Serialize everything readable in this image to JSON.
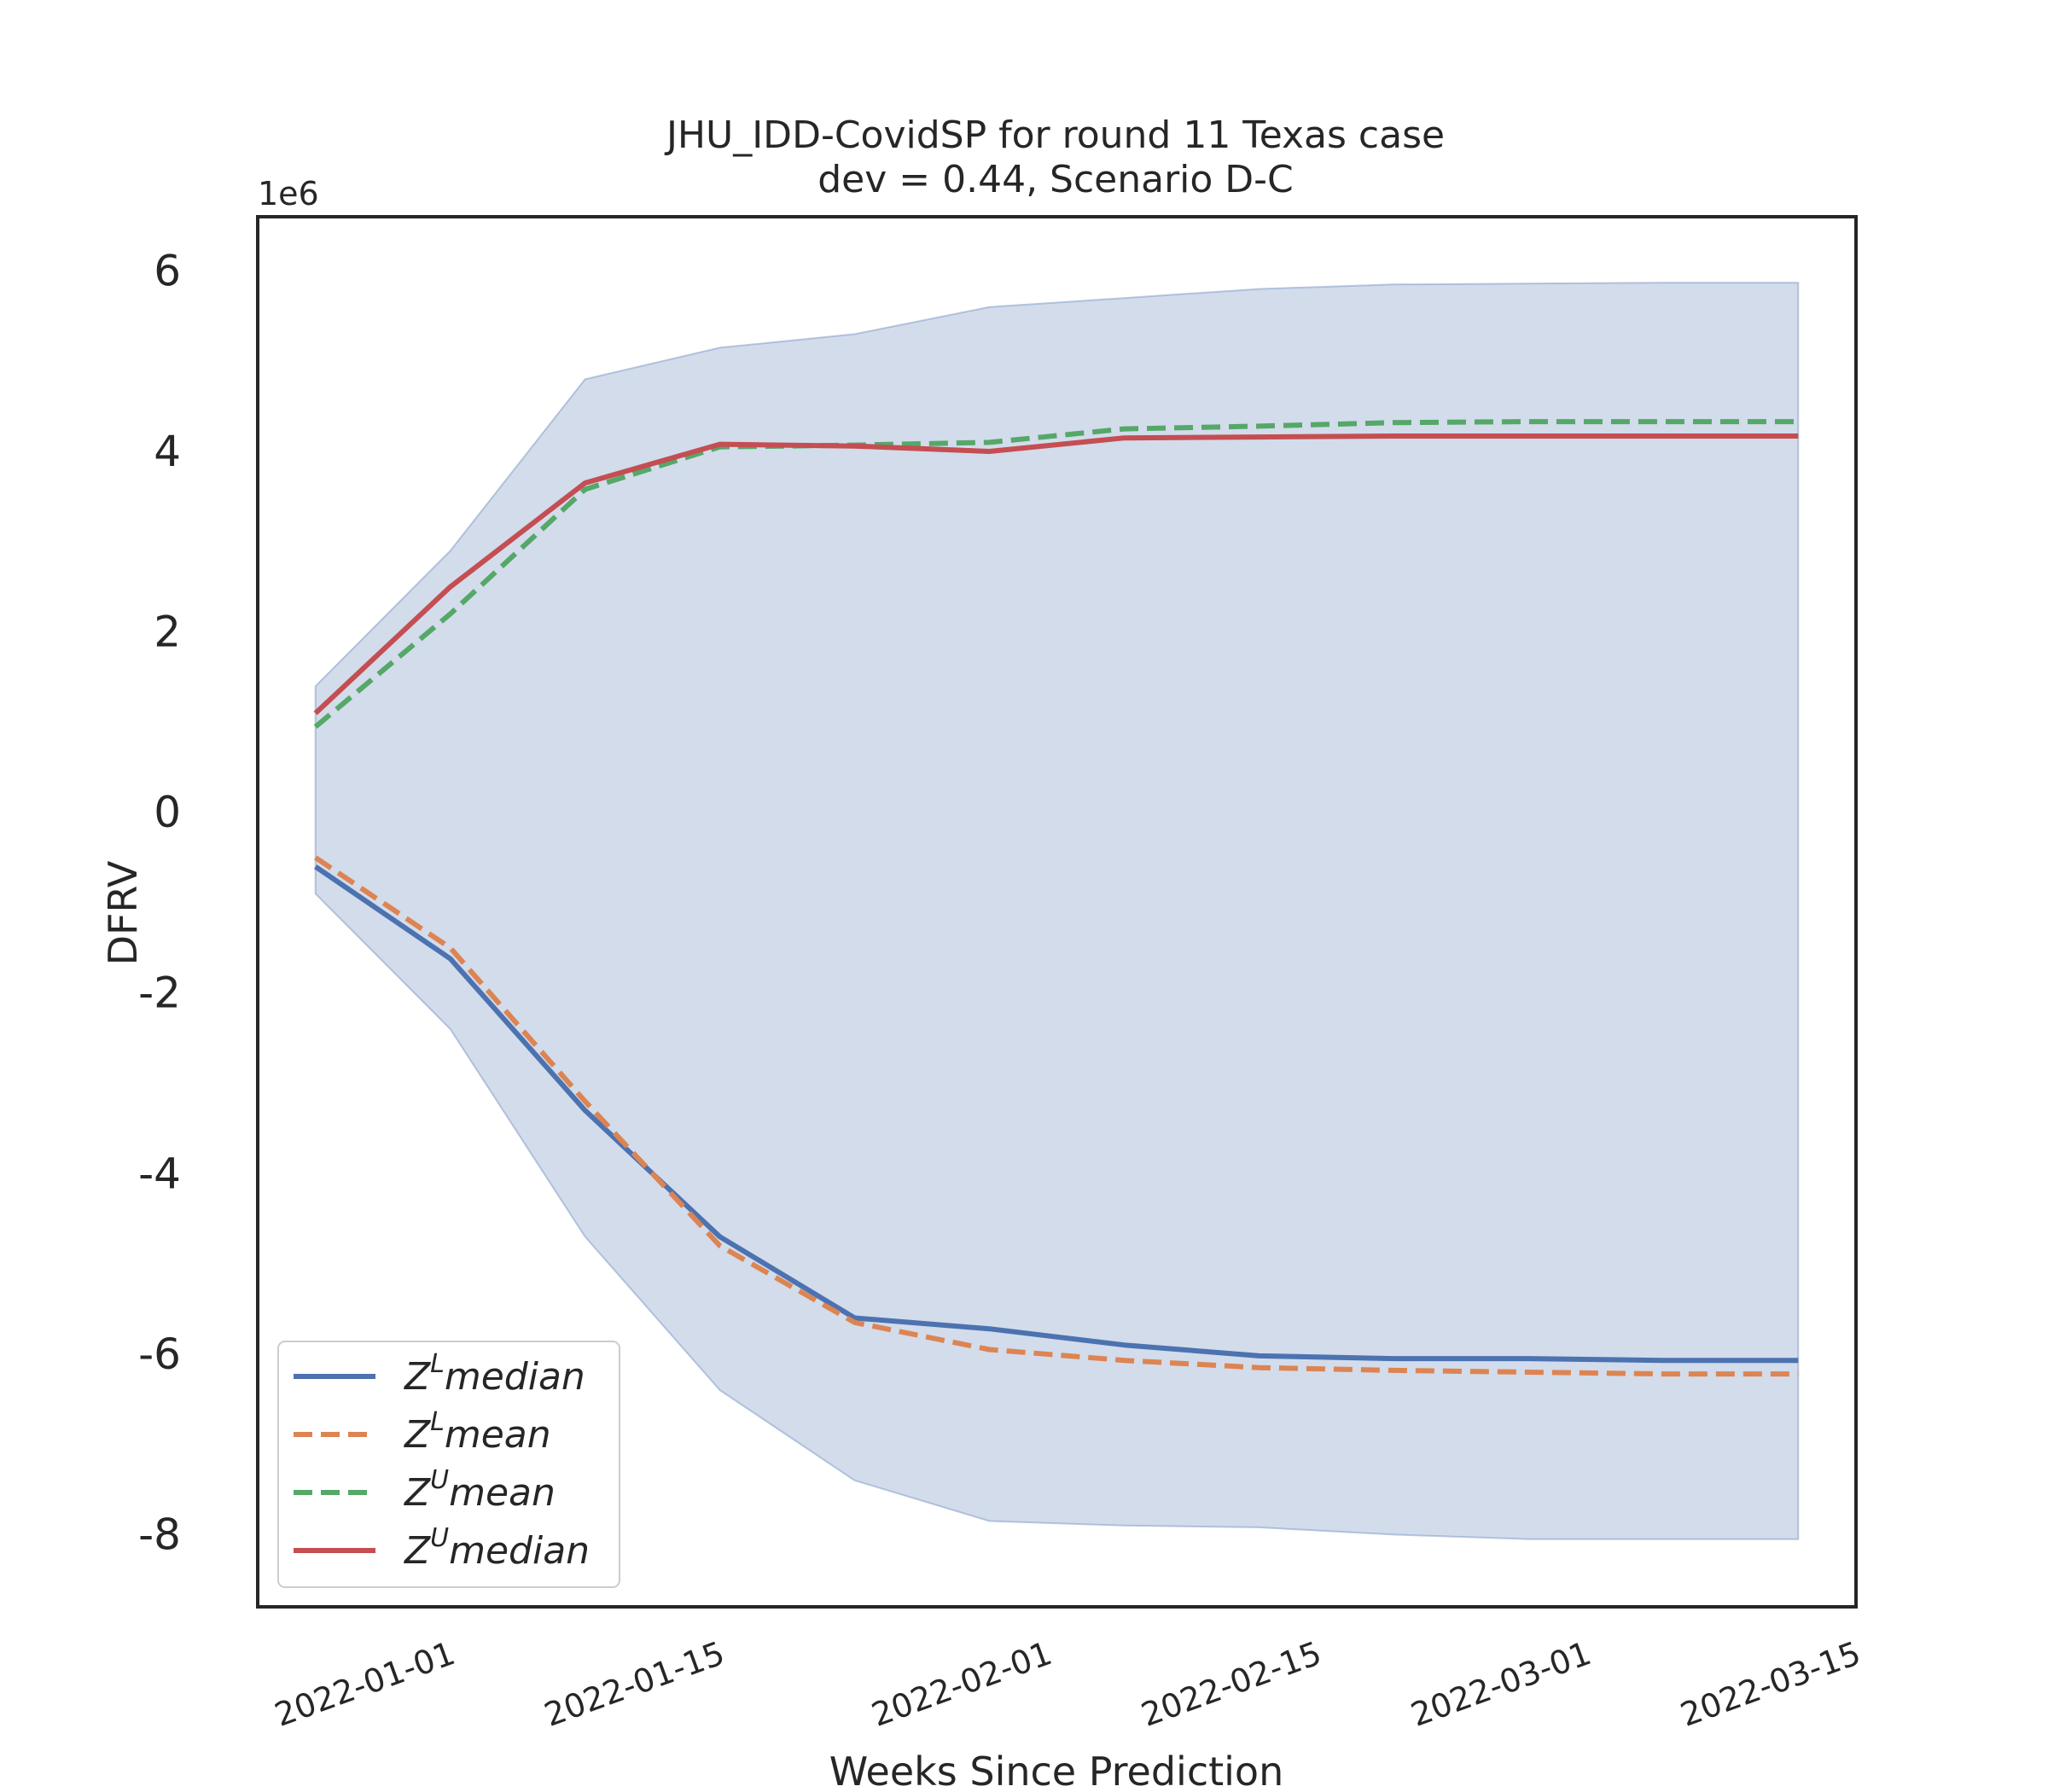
{
  "chart_data": {
    "type": "line",
    "title": [
      "JHU_IDD-CovidSP for round 11 Texas case",
      "dev = 0.44, Scenario D-C"
    ],
    "xlabel": "Weeks Since Prediction",
    "ylabel": "DFRV",
    "y_offset_label": "1e6",
    "x_tick_labels": [
      "2022-01-01",
      "2022-01-15",
      "2022-02-01",
      "2022-02-15",
      "2022-03-01",
      "2022-03-15"
    ],
    "y_tick_labels": [
      "6",
      "4",
      "2",
      "0",
      "-2",
      "-4",
      "-6",
      "-8"
    ],
    "y_tick_values": [
      6,
      4,
      2,
      0,
      -2,
      -4,
      -6,
      -8
    ],
    "xlim": [
      "2021-12-22",
      "2022-03-15"
    ],
    "ylim": [
      -8.8,
      6.6
    ],
    "grid": false,
    "legend_position": "lower-left",
    "x": [
      "2021-12-25",
      "2022-01-01",
      "2022-01-08",
      "2022-01-15",
      "2022-01-22",
      "2022-01-29",
      "2022-02-05",
      "2022-02-12",
      "2022-02-19",
      "2022-02-26",
      "2022-03-05",
      "2022-03-12"
    ],
    "band": {
      "upper": [
        1.4,
        2.9,
        4.8,
        5.15,
        5.3,
        5.6,
        5.7,
        5.8,
        5.85,
        5.86,
        5.87,
        5.87
      ],
      "lower": [
        -0.9,
        -2.4,
        -4.7,
        -6.4,
        -7.4,
        -7.85,
        -7.9,
        -7.92,
        -8.0,
        -8.05,
        -8.05,
        -8.05
      ],
      "color": "#4c72b0"
    },
    "series": [
      {
        "name": "median",
        "sup": "L",
        "color": "#4c72b0",
        "dash": false,
        "values": [
          -0.6,
          -1.62,
          -3.3,
          -4.7,
          -5.6,
          -5.72,
          -5.9,
          -6.02,
          -6.05,
          -6.05,
          -6.07,
          -6.07
        ]
      },
      {
        "name": "mean",
        "sup": "L",
        "color": "#dd8452",
        "dash": true,
        "values": [
          -0.5,
          -1.5,
          -3.2,
          -4.8,
          -5.65,
          -5.95,
          -6.07,
          -6.15,
          -6.18,
          -6.2,
          -6.22,
          -6.22
        ]
      },
      {
        "name": "mean",
        "sup": "U",
        "color": "#55a868",
        "dash": true,
        "values": [
          0.95,
          2.2,
          3.58,
          4.05,
          4.07,
          4.1,
          4.25,
          4.28,
          4.32,
          4.33,
          4.33,
          4.33
        ]
      },
      {
        "name": "median",
        "sup": "U",
        "color": "#c44e52",
        "dash": false,
        "values": [
          1.1,
          2.5,
          3.65,
          4.08,
          4.06,
          4.0,
          4.15,
          4.16,
          4.17,
          4.17,
          4.17,
          4.17
        ]
      }
    ]
  }
}
